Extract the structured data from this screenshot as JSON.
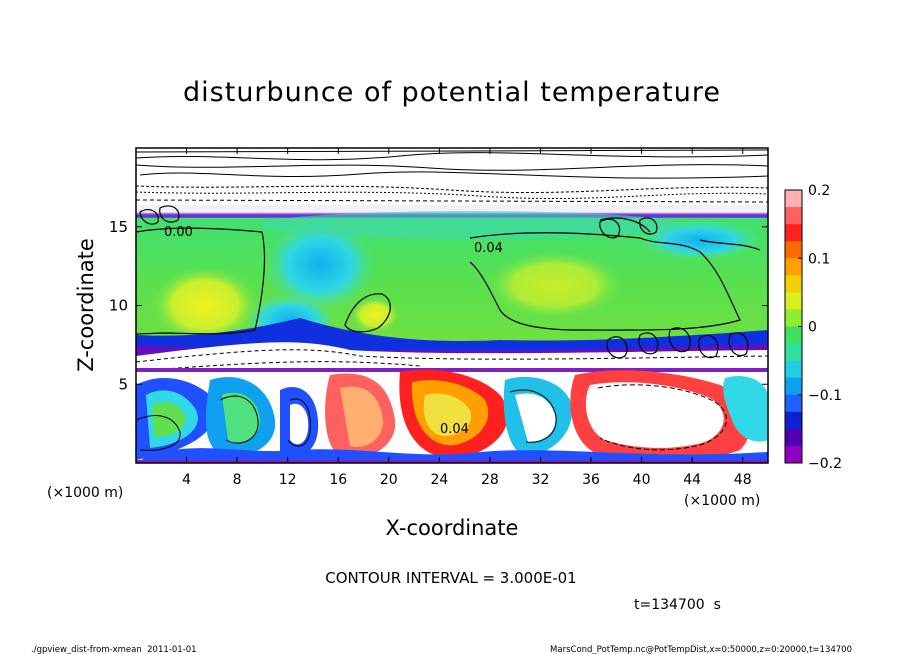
{
  "chart_data": {
    "type": "heatmap",
    "title": "disturbunce of potential temperature",
    "xlabel": "X-coordinate",
    "ylabel": "Z-coordinate",
    "x_unit_left": "(×1000 m)",
    "x_unit_right": "(×1000 m)",
    "x_ticks": [
      "4",
      "8",
      "12",
      "16",
      "20",
      "24",
      "28",
      "32",
      "36",
      "40",
      "44",
      "48"
    ],
    "y_ticks": [
      "5",
      "10",
      "15"
    ],
    "xlim": [
      0,
      50
    ],
    "ylim": [
      0,
      20
    ],
    "colorbar": {
      "range": [
        -0.2,
        0.2
      ],
      "ticks": [
        "0.2",
        "0.1",
        "0",
        "−0.1",
        "−0.2"
      ],
      "colors": [
        "#ffb0b0",
        "#ff6060",
        "#ff2020",
        "#ff6a00",
        "#ffa000",
        "#f0d000",
        "#d8f020",
        "#90ee30",
        "#40e060",
        "#30e0a0",
        "#20d0e0",
        "#10a0f0",
        "#2060ff",
        "#1020d0",
        "#5000b0",
        "#9000c0"
      ]
    },
    "contour_labels": [
      "0.00",
      "0.04",
      "0.04"
    ],
    "contour_interval_text": "CONTOUR INTERVAL = 3.000E-01",
    "time_text": "t=134700  s"
  },
  "footer": {
    "left": "./gpview_dist-from-xmean  2011-01-01",
    "right": "MarsCond_PotTemp.nc@PotTempDist,x=0:50000,z=0:20000,t=134700"
  },
  "colors": {
    "green": "#50e050",
    "yellow": "#d8f020",
    "cyan": "#30d8e8",
    "blue": "#2050ff",
    "purple": "#7a00c0",
    "red": "#ff2020",
    "orange": "#ffa000"
  }
}
